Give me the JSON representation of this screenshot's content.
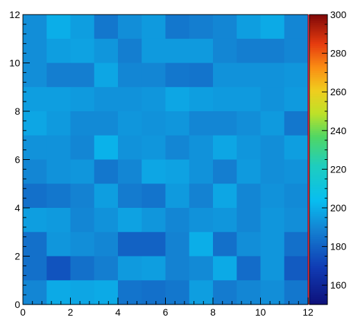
{
  "chart_data": {
    "type": "heatmap",
    "title": "",
    "xlabel": "",
    "ylabel": "",
    "xlim": [
      0,
      12
    ],
    "ylim": [
      0,
      12
    ],
    "x_ticks": [
      0,
      2,
      4,
      6,
      8,
      10,
      12
    ],
    "y_ticks": [
      0,
      2,
      4,
      6,
      8,
      10,
      12
    ],
    "x_tick_labels": [
      "0",
      "2",
      "4",
      "6",
      "8",
      "10",
      "12"
    ],
    "y_tick_labels": [
      "0",
      "2",
      "4",
      "6",
      "8",
      "10",
      "12"
    ],
    "grid": false,
    "x_bin_edges": [
      0,
      1,
      2,
      3,
      4,
      5,
      6,
      7,
      8,
      9,
      10,
      11,
      12
    ],
    "y_bin_edges": [
      0,
      1,
      2,
      3,
      4,
      5,
      6,
      7,
      8,
      9,
      10,
      11,
      12
    ],
    "note_rows": "values[0] is the top row (y 11-12), values[11] is the bottom row (y 0-1); columns go x 0-1 .. 11-12",
    "values": [
      [
        192,
        200,
        196,
        186,
        192,
        195,
        186,
        188,
        190,
        196,
        199,
        190
      ],
      [
        192,
        196,
        197,
        194,
        188,
        195,
        195,
        195,
        190,
        188,
        188,
        190
      ],
      [
        192,
        188,
        188,
        198,
        190,
        190,
        186,
        185,
        193,
        193,
        193,
        194
      ],
      [
        196,
        196,
        195,
        193,
        193,
        194,
        198,
        196,
        195,
        195,
        193,
        195
      ],
      [
        198,
        195,
        191,
        191,
        194,
        193,
        194,
        190,
        190,
        192,
        195,
        186
      ],
      [
        193,
        193,
        190,
        201,
        193,
        194,
        190,
        193,
        198,
        194,
        192,
        196
      ],
      [
        190,
        193,
        194,
        186,
        190,
        198,
        197,
        193,
        188,
        195,
        192,
        193
      ],
      [
        184,
        186,
        189,
        196,
        187,
        185,
        195,
        189,
        198,
        190,
        193,
        191
      ],
      [
        196,
        195,
        190,
        193,
        197,
        194,
        190,
        193,
        194,
        190,
        194,
        192
      ],
      [
        184,
        194,
        192,
        190,
        180,
        180,
        189,
        200,
        184,
        192,
        194,
        184
      ],
      [
        184,
        176,
        184,
        188,
        195,
        196,
        189,
        191,
        199,
        183,
        194,
        178
      ],
      [
        190,
        199,
        198,
        199,
        185,
        184,
        186,
        196,
        187,
        190,
        192,
        186
      ]
    ],
    "colorbar": {
      "min": 150,
      "max": 300,
      "ticks": [
        160,
        180,
        200,
        220,
        240,
        260,
        280,
        300
      ],
      "tick_labels": [
        "160",
        "180",
        "200",
        "220",
        "240",
        "260",
        "280",
        "300"
      ],
      "palette": "rainbow"
    }
  }
}
